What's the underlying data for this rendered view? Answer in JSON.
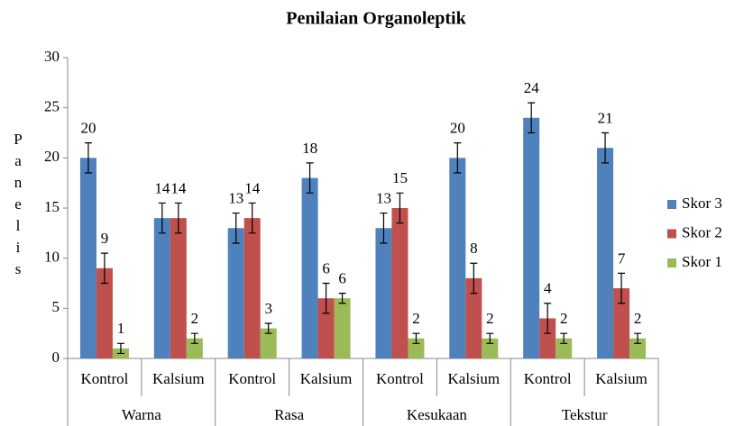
{
  "chart_data": {
    "type": "bar",
    "title": "Penilaian Organoleptik",
    "y_label": "Panelis",
    "categories": [
      "Kontrol",
      "Kalsium",
      "Kontrol",
      "Kalsium",
      "Kontrol",
      "Kalsium",
      "Kontrol",
      "Kalsium"
    ],
    "groups": [
      "Warna",
      "Rasa",
      "Kesukaan",
      "Tekstur"
    ],
    "series": [
      {
        "name": "Skor 3",
        "color": "#4f81bd",
        "values": [
          20,
          14,
          13,
          18,
          13,
          20,
          24,
          21
        ],
        "errors": [
          1.5,
          1.5,
          1.5,
          1.5,
          1.5,
          1.5,
          1.5,
          1.5
        ]
      },
      {
        "name": "Skor 2",
        "color": "#c0504d",
        "values": [
          9,
          14,
          14,
          6,
          15,
          8,
          4,
          7
        ],
        "errors": [
          1.5,
          1.5,
          1.5,
          1.5,
          1.5,
          1.5,
          1.5,
          1.5
        ]
      },
      {
        "name": "Skor 1",
        "color": "#9bbb59",
        "values": [
          1,
          2,
          3,
          6,
          2,
          2,
          2,
          2
        ],
        "errors": [
          0.5,
          0.5,
          0.5,
          0.5,
          0.5,
          0.5,
          0.5,
          0.5
        ]
      }
    ],
    "ylim": [
      0,
      30
    ],
    "yticks": [
      0,
      5,
      10,
      15,
      20,
      25,
      30
    ],
    "grid": false,
    "legend": "right"
  }
}
